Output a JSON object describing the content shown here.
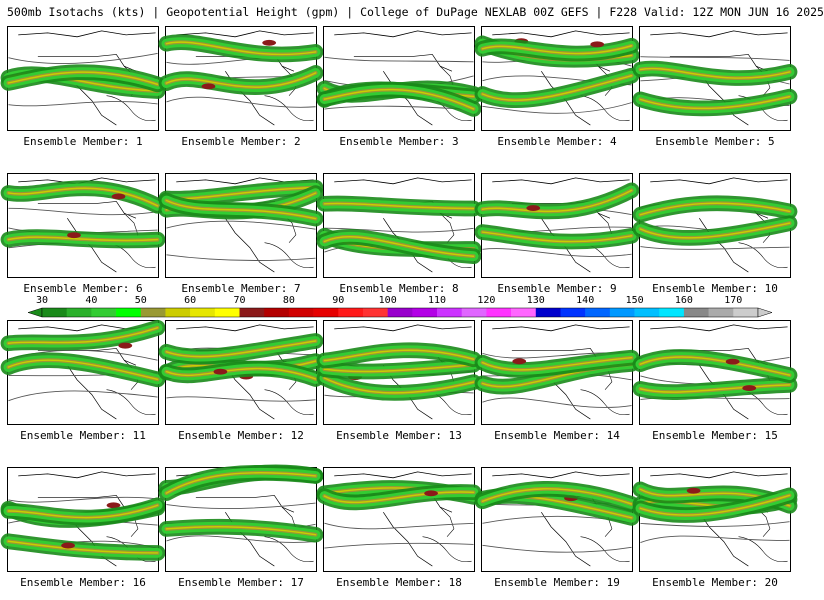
{
  "header": {
    "title": "500mb Isotachs (kts) | Geopotential Height (gpm) | College of DuPage NEXLAB   00Z GEFS | F228 Valid: 12Z MON JUN 16 2025"
  },
  "members": [
    {
      "label": "Ensemble Member: 1"
    },
    {
      "label": "Ensemble Member: 2"
    },
    {
      "label": "Ensemble Member: 3"
    },
    {
      "label": "Ensemble Member: 4"
    },
    {
      "label": "Ensemble Member: 5"
    },
    {
      "label": "Ensemble Member: 6"
    },
    {
      "label": "Ensemble Member: 7"
    },
    {
      "label": "Ensemble Member: 8"
    },
    {
      "label": "Ensemble Member: 9"
    },
    {
      "label": "Ensemble Member: 10"
    },
    {
      "label": "Ensemble Member: 11"
    },
    {
      "label": "Ensemble Member: 12"
    },
    {
      "label": "Ensemble Member: 13"
    },
    {
      "label": "Ensemble Member: 14"
    },
    {
      "label": "Ensemble Member: 15"
    },
    {
      "label": "Ensemble Member: 16"
    },
    {
      "label": "Ensemble Member: 17"
    },
    {
      "label": "Ensemble Member: 18"
    },
    {
      "label": "Ensemble Member: 19"
    },
    {
      "label": "Ensemble Member: 20"
    }
  ],
  "legend": {
    "labels": [
      "30",
      "40",
      "50",
      "60",
      "70",
      "80",
      "90",
      "100",
      "110",
      "120",
      "130",
      "140",
      "150",
      "160",
      "170"
    ],
    "colors": [
      "#1a8a1a",
      "#2bb02b",
      "#33cc33",
      "#00ff00",
      "#999933",
      "#cccc00",
      "#e6e600",
      "#ffff00",
      "#8b1a1a",
      "#b30000",
      "#d10000",
      "#e60000",
      "#ff1a1a",
      "#ff3333",
      "#9900cc",
      "#b300e6",
      "#cc33ff",
      "#e066ff",
      "#ff33ff",
      "#ff66ff",
      "#0000cc",
      "#0033ff",
      "#0066ff",
      "#0099ff",
      "#00bfff",
      "#00e5ff",
      "#888888",
      "#aaaaaa",
      "#cccccc"
    ]
  }
}
